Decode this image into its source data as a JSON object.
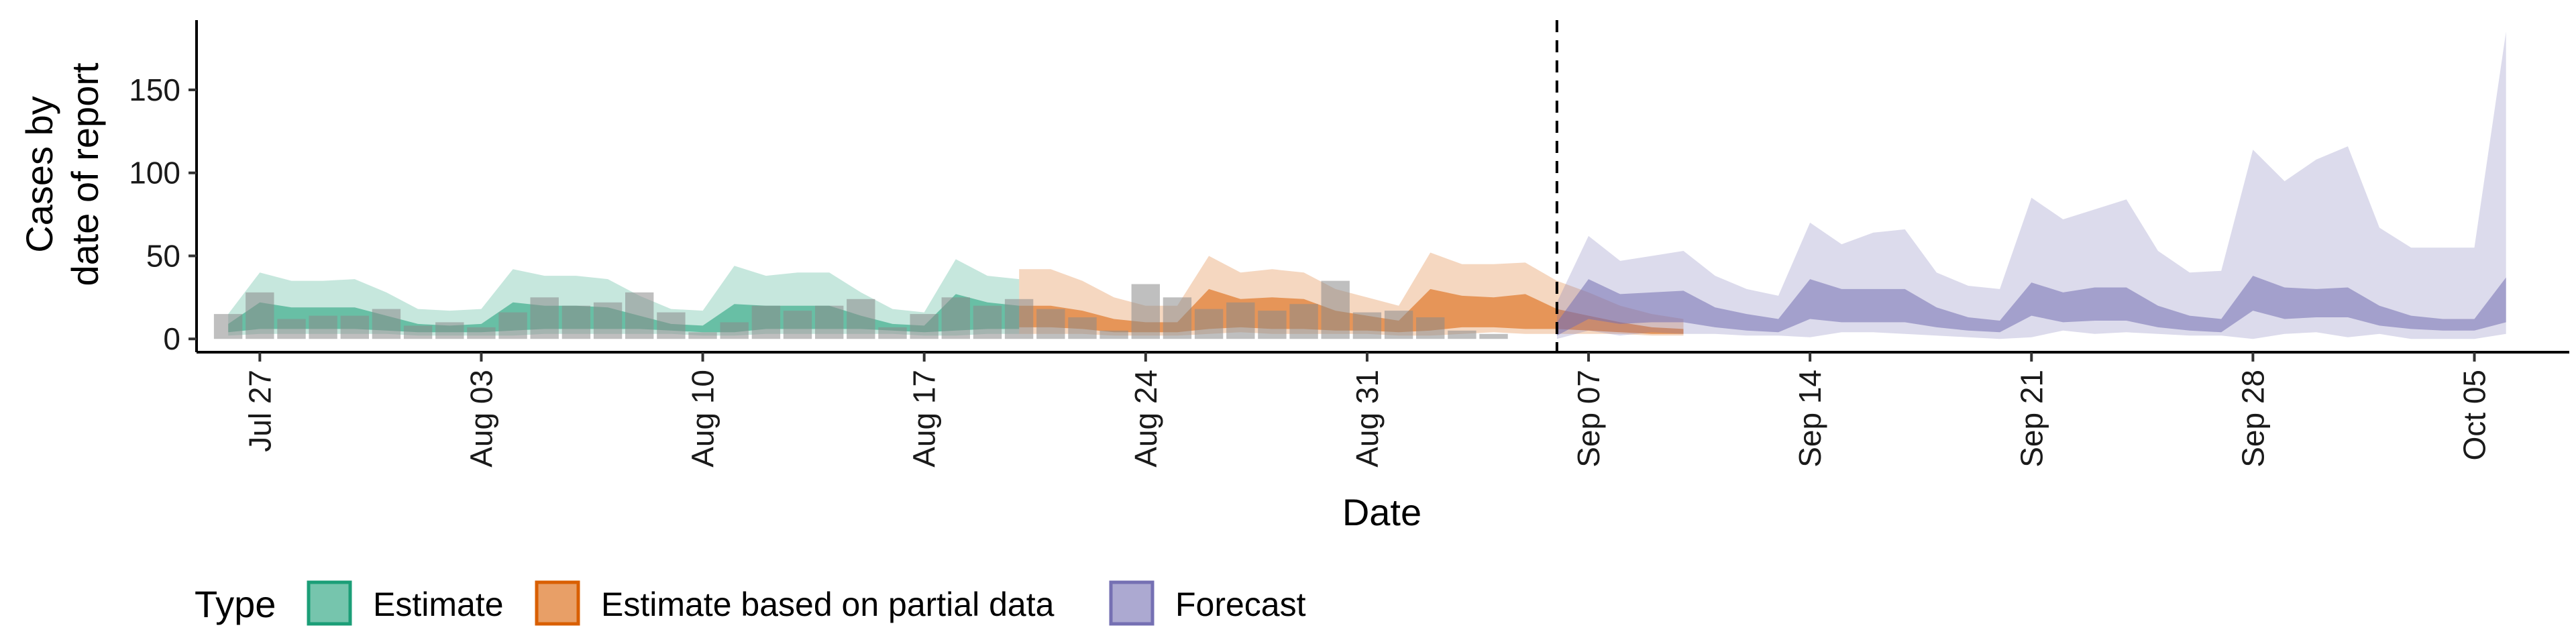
{
  "chart_data": {
    "type": "area",
    "xlabel": "Date",
    "ylabel_lines": [
      "Cases by",
      "date of report"
    ],
    "ylim": [
      -8,
      192
    ],
    "y_ticks": [
      0,
      50,
      100,
      150
    ],
    "x_start": "2020-07-25",
    "x_end": "2020-10-08",
    "x_tick_dates": [
      "2020-07-27",
      "2020-08-03",
      "2020-08-10",
      "2020-08-17",
      "2020-08-24",
      "2020-08-31",
      "2020-09-07",
      "2020-09-14",
      "2020-09-21",
      "2020-09-28",
      "2020-10-05"
    ],
    "x_tick_labels": [
      "Jul 27",
      "Aug 03",
      "Aug 10",
      "Aug 17",
      "Aug 24",
      "Aug 31",
      "Sep 07",
      "Sep 14",
      "Sep 21",
      "Sep 28",
      "Oct 05"
    ],
    "forecast_start": "2020-09-06",
    "observed": {
      "start": "2020-07-26",
      "values": [
        15,
        28,
        12,
        14,
        14,
        18,
        8,
        10,
        7,
        16,
        25,
        20,
        22,
        28,
        16,
        4,
        10,
        20,
        17,
        20,
        24,
        7,
        15,
        25,
        20,
        24,
        18,
        13,
        5,
        33,
        25,
        18,
        22,
        17,
        21,
        35,
        16,
        17,
        13,
        5,
        3
      ]
    },
    "series": [
      {
        "name": "Estimate",
        "color": "#1b9e77",
        "start": "2020-07-26",
        "lower90": [
          2,
          3,
          3,
          3,
          3,
          3,
          2,
          2,
          2,
          2,
          3,
          3,
          3,
          3,
          3,
          2,
          2,
          3,
          3,
          3,
          3,
          3,
          2,
          2,
          3,
          3
        ],
        "upper90": [
          15,
          40,
          35,
          35,
          36,
          28,
          18,
          17,
          18,
          42,
          38,
          38,
          36,
          26,
          18,
          17,
          44,
          38,
          40,
          40,
          28,
          18,
          16,
          48,
          38,
          36
        ],
        "lower50": [
          4,
          6,
          6,
          6,
          6,
          5,
          4,
          4,
          4,
          5,
          6,
          6,
          6,
          6,
          5,
          4,
          4,
          6,
          6,
          6,
          6,
          5,
          4,
          5,
          6,
          6
        ],
        "upper50": [
          9,
          22,
          19,
          19,
          19,
          14,
          9,
          8,
          9,
          22,
          20,
          20,
          19,
          14,
          9,
          8,
          21,
          20,
          20,
          20,
          14,
          9,
          8,
          27,
          22,
          20
        ]
      },
      {
        "name": "Estimate based on partial data",
        "color": "#d95f02",
        "start": "2020-08-20",
        "lower90": [
          3,
          3,
          3,
          2,
          2,
          2,
          3,
          4,
          3,
          3,
          3,
          3,
          2,
          2,
          3,
          4,
          3,
          3,
          3,
          3,
          2,
          2
        ],
        "upper90": [
          42,
          42,
          35,
          25,
          20,
          20,
          50,
          40,
          42,
          40,
          30,
          25,
          20,
          52,
          45,
          45,
          46,
          35,
          28,
          20,
          15,
          12
        ],
        "lower50": [
          7,
          7,
          6,
          4,
          4,
          4,
          6,
          7,
          6,
          6,
          5,
          5,
          4,
          5,
          7,
          7,
          6,
          6,
          5,
          4,
          3,
          3
        ],
        "upper50": [
          20,
          20,
          17,
          12,
          10,
          10,
          30,
          24,
          25,
          24,
          17,
          14,
          11,
          30,
          26,
          25,
          27,
          18,
          14,
          10,
          7,
          6
        ]
      },
      {
        "name": "Forecast",
        "color": "#7570b3",
        "start": "2020-09-06",
        "lower90": [
          0,
          5,
          2,
          4,
          3,
          3,
          2,
          2,
          1,
          4,
          4,
          3,
          2,
          1,
          0,
          1,
          5,
          3,
          4,
          3,
          2,
          2,
          0,
          3,
          4,
          1,
          3,
          0,
          0,
          0,
          3
        ],
        "upper90": [
          22,
          62,
          47,
          50,
          53,
          38,
          30,
          26,
          70,
          57,
          64,
          66,
          40,
          32,
          30,
          85,
          72,
          78,
          84,
          53,
          40,
          41,
          114,
          95,
          108,
          116,
          67,
          55,
          55,
          55,
          185
        ],
        "lower50": [
          2,
          12,
          9,
          10,
          10,
          7,
          5,
          4,
          12,
          10,
          10,
          10,
          7,
          5,
          4,
          14,
          10,
          11,
          11,
          7,
          5,
          4,
          17,
          12,
          13,
          13,
          8,
          6,
          5,
          5,
          10
        ],
        "upper50": [
          10,
          36,
          27,
          28,
          29,
          19,
          15,
          12,
          36,
          30,
          30,
          30,
          19,
          13,
          11,
          34,
          28,
          31,
          31,
          20,
          14,
          12,
          38,
          31,
          30,
          31,
          20,
          14,
          12,
          12,
          37
        ]
      }
    ],
    "legend_title": "Type",
    "legend_position": "bottom-left"
  }
}
